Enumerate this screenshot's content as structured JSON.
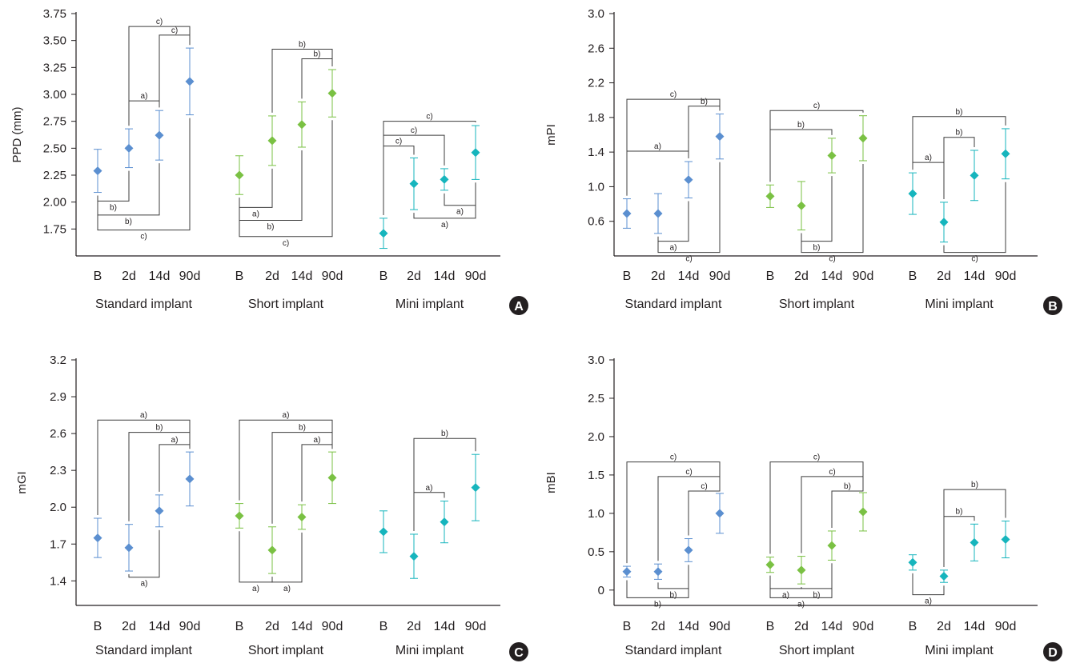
{
  "colors": {
    "standard": "#5b8fd0",
    "short": "#7ac143",
    "mini": "#16b5bd",
    "axis": "#231f20",
    "bracket": "#3c3c3c",
    "badge": "#231f20"
  },
  "chart_data": [
    {
      "type": "scatter",
      "panel": "A",
      "ylabel": "PPD (mm)",
      "yticks": [
        "3.75",
        "3.50",
        "3.25",
        "3.00",
        "2.75",
        "2.50",
        "2.25",
        "2.00",
        "1.75"
      ],
      "ylim": [
        1.5,
        3.75
      ],
      "groups": [
        "Standard implant",
        "Short implant",
        "Mini implant"
      ],
      "timepoints": [
        "B",
        "2d",
        "14d",
        "90d"
      ],
      "series": [
        {
          "name": "Standard implant",
          "values": [
            2.29,
            2.5,
            2.62,
            3.12
          ],
          "errors": [
            0.2,
            0.18,
            0.23,
            0.31
          ]
        },
        {
          "name": "Short implant",
          "values": [
            2.25,
            2.57,
            2.72,
            3.01
          ],
          "errors": [
            0.18,
            0.23,
            0.21,
            0.22
          ]
        },
        {
          "name": "Mini implant",
          "values": [
            1.71,
            2.17,
            2.21,
            2.46
          ],
          "errors": [
            0.14,
            0.24,
            0.1,
            0.25
          ]
        }
      ],
      "brackets": [
        {
          "g": 0,
          "a": 1,
          "b": 2,
          "y": 2.94,
          "dir": "up",
          "label": "a)"
        },
        {
          "g": 0,
          "a": 2,
          "b": 3,
          "y": 3.55,
          "dir": "up",
          "label": "c)"
        },
        {
          "g": 0,
          "a": 1,
          "b": 3,
          "y": 3.63,
          "dir": "up",
          "label": "c)"
        },
        {
          "g": 0,
          "a": 0,
          "b": 1,
          "y": 2.01,
          "dir": "down",
          "label": "b)"
        },
        {
          "g": 0,
          "a": 0,
          "b": 2,
          "y": 1.88,
          "dir": "down",
          "label": "b)"
        },
        {
          "g": 0,
          "a": 0,
          "b": 3,
          "y": 1.74,
          "dir": "down",
          "label": "c)"
        },
        {
          "g": 1,
          "a": 2,
          "b": 3,
          "y": 3.33,
          "dir": "up",
          "label": "b)"
        },
        {
          "g": 1,
          "a": 1,
          "b": 3,
          "y": 3.42,
          "dir": "up",
          "label": "b)"
        },
        {
          "g": 1,
          "a": 0,
          "b": 1,
          "y": 1.95,
          "dir": "down",
          "label": "a)"
        },
        {
          "g": 1,
          "a": 0,
          "b": 2,
          "y": 1.83,
          "dir": "down",
          "label": "b)"
        },
        {
          "g": 1,
          "a": 0,
          "b": 3,
          "y": 1.68,
          "dir": "down",
          "label": "c)"
        },
        {
          "g": 2,
          "a": 0,
          "b": 1,
          "y": 2.52,
          "dir": "up",
          "label": "c)"
        },
        {
          "g": 2,
          "a": 0,
          "b": 2,
          "y": 2.62,
          "dir": "up",
          "label": "c)"
        },
        {
          "g": 2,
          "a": 0,
          "b": 3,
          "y": 2.75,
          "dir": "up",
          "label": "c)"
        },
        {
          "g": 2,
          "a": 2,
          "b": 3,
          "y": 1.97,
          "dir": "down",
          "label": "a)"
        },
        {
          "g": 2,
          "a": 1,
          "b": 3,
          "y": 1.85,
          "dir": "down",
          "label": "a)"
        }
      ],
      "badge": "A"
    },
    {
      "type": "scatter",
      "panel": "B",
      "ylabel": "mPI",
      "yticks": [
        "3.0",
        "2.6",
        "2.2",
        "1.8",
        "1.4",
        "1.0",
        "0.6"
      ],
      "ylim": [
        0.2,
        3.0
      ],
      "groups": [
        "Standard implant",
        "Short implant",
        "Mini implant"
      ],
      "timepoints": [
        "B",
        "2d",
        "14d",
        "90d"
      ],
      "series": [
        {
          "name": "Standard implant",
          "values": [
            0.69,
            0.69,
            1.08,
            1.58
          ],
          "errors": [
            0.17,
            0.23,
            0.21,
            0.26
          ]
        },
        {
          "name": "Short implant",
          "values": [
            0.89,
            0.78,
            1.36,
            1.56
          ],
          "errors": [
            0.13,
            0.28,
            0.2,
            0.26
          ]
        },
        {
          "name": "Mini implant",
          "values": [
            0.92,
            0.59,
            1.13,
            1.38
          ],
          "errors": [
            0.24,
            0.23,
            0.29,
            0.29
          ]
        }
      ],
      "brackets": [
        {
          "g": 0,
          "a": 0,
          "b": 2,
          "y": 1.41,
          "dir": "up",
          "label": "a)"
        },
        {
          "g": 0,
          "a": 2,
          "b": 3,
          "y": 1.93,
          "dir": "up",
          "label": "b)"
        },
        {
          "g": 0,
          "a": 0,
          "b": 3,
          "y": 2.01,
          "dir": "up",
          "label": "c)"
        },
        {
          "g": 0,
          "a": 1,
          "b": 2,
          "y": 0.37,
          "dir": "down",
          "label": "a)"
        },
        {
          "g": 0,
          "a": 1,
          "b": 3,
          "y": 0.24,
          "dir": "down",
          "label": "c)"
        },
        {
          "g": 1,
          "a": 0,
          "b": 2,
          "y": 1.66,
          "dir": "up",
          "label": "b)"
        },
        {
          "g": 1,
          "a": 0,
          "b": 3,
          "y": 1.88,
          "dir": "up",
          "label": "c)"
        },
        {
          "g": 1,
          "a": 1,
          "b": 2,
          "y": 0.37,
          "dir": "down",
          "label": "b)"
        },
        {
          "g": 1,
          "a": 1,
          "b": 3,
          "y": 0.24,
          "dir": "down",
          "label": "c)"
        },
        {
          "g": 2,
          "a": 0,
          "b": 1,
          "y": 1.28,
          "dir": "up",
          "label": "a)"
        },
        {
          "g": 2,
          "a": 1,
          "b": 2,
          "y": 1.57,
          "dir": "up",
          "label": "b)"
        },
        {
          "g": 2,
          "a": 0,
          "b": 3,
          "y": 1.81,
          "dir": "up",
          "label": "b)"
        },
        {
          "g": 2,
          "a": 1,
          "b": 3,
          "y": 0.24,
          "dir": "down",
          "label": "c)"
        }
      ],
      "badge": "B"
    },
    {
      "type": "scatter",
      "panel": "C",
      "ylabel": "mGI",
      "yticks": [
        "3.2",
        "2.9",
        "2.6",
        "2.3",
        "2.0",
        "1.7",
        "1.4"
      ],
      "ylim": [
        1.2,
        3.2
      ],
      "groups": [
        "Standard implant",
        "Short implant",
        "Mini implant"
      ],
      "timepoints": [
        "B",
        "2d",
        "14d",
        "90d"
      ],
      "series": [
        {
          "name": "Standard implant",
          "values": [
            1.75,
            1.67,
            1.97,
            2.23
          ],
          "errors": [
            0.16,
            0.19,
            0.13,
            0.22
          ]
        },
        {
          "name": "Short implant",
          "values": [
            1.93,
            1.65,
            1.92,
            2.24
          ],
          "errors": [
            0.1,
            0.19,
            0.1,
            0.21
          ]
        },
        {
          "name": "Mini implant",
          "values": [
            1.8,
            1.6,
            1.88,
            2.16
          ],
          "errors": [
            0.17,
            0.18,
            0.17,
            0.27
          ]
        }
      ],
      "brackets": [
        {
          "g": 0,
          "a": 2,
          "b": 3,
          "y": 2.51,
          "dir": "up",
          "label": "a)"
        },
        {
          "g": 0,
          "a": 1,
          "b": 3,
          "y": 2.61,
          "dir": "up",
          "label": "b)"
        },
        {
          "g": 0,
          "a": 0,
          "b": 3,
          "y": 2.71,
          "dir": "up",
          "label": "a)"
        },
        {
          "g": 0,
          "a": 1,
          "b": 2,
          "y": 1.43,
          "dir": "down",
          "label": "a)"
        },
        {
          "g": 1,
          "a": 2,
          "b": 3,
          "y": 2.51,
          "dir": "up",
          "label": "a)"
        },
        {
          "g": 1,
          "a": 1,
          "b": 3,
          "y": 2.61,
          "dir": "up",
          "label": "b)"
        },
        {
          "g": 1,
          "a": 0,
          "b": 3,
          "y": 2.71,
          "dir": "up",
          "label": "a)"
        },
        {
          "g": 1,
          "a": 0,
          "b": 1,
          "y": 1.39,
          "dir": "down",
          "label": "a)"
        },
        {
          "g": 1,
          "a": 1,
          "b": 2,
          "y": 1.39,
          "dir": "down",
          "label": "a)"
        },
        {
          "g": 2,
          "a": 1,
          "b": 2,
          "y": 2.12,
          "dir": "up",
          "label": "a)"
        },
        {
          "g": 2,
          "a": 1,
          "b": 3,
          "y": 2.56,
          "dir": "up",
          "label": "b)"
        }
      ],
      "badge": "C"
    },
    {
      "type": "scatter",
      "panel": "D",
      "ylabel": "mBI",
      "yticks": [
        "3.0",
        "2.5",
        "2.0",
        "1.5",
        "1.0",
        "0.5",
        "0"
      ],
      "ylim": [
        -0.2,
        3.0
      ],
      "groups": [
        "Standard implant",
        "Short implant",
        "Mini implant"
      ],
      "timepoints": [
        "B",
        "2d",
        "14d",
        "90d"
      ],
      "series": [
        {
          "name": "Standard implant",
          "values": [
            0.24,
            0.24,
            0.52,
            1.0
          ],
          "errors": [
            0.07,
            0.1,
            0.15,
            0.26
          ]
        },
        {
          "name": "Short implant",
          "values": [
            0.33,
            0.26,
            0.58,
            1.02
          ],
          "errors": [
            0.1,
            0.18,
            0.19,
            0.25
          ]
        },
        {
          "name": "Mini implant",
          "values": [
            0.36,
            0.18,
            0.62,
            0.66
          ],
          "errors": [
            0.1,
            0.08,
            0.24,
            0.24
          ]
        }
      ],
      "brackets": [
        {
          "g": 0,
          "a": 2,
          "b": 3,
          "y": 1.29,
          "dir": "up",
          "label": "c)"
        },
        {
          "g": 0,
          "a": 1,
          "b": 3,
          "y": 1.48,
          "dir": "up",
          "label": "c)"
        },
        {
          "g": 0,
          "a": 0,
          "b": 3,
          "y": 1.67,
          "dir": "up",
          "label": "c)"
        },
        {
          "g": 0,
          "a": 1,
          "b": 2,
          "y": 0.02,
          "dir": "down",
          "label": "b)"
        },
        {
          "g": 0,
          "a": 0,
          "b": 2,
          "y": -0.1,
          "dir": "down",
          "label": "b)"
        },
        {
          "g": 1,
          "a": 2,
          "b": 3,
          "y": 1.29,
          "dir": "up",
          "label": "b)"
        },
        {
          "g": 1,
          "a": 1,
          "b": 3,
          "y": 1.48,
          "dir": "up",
          "label": "c)"
        },
        {
          "g": 1,
          "a": 0,
          "b": 3,
          "y": 1.67,
          "dir": "up",
          "label": "c)"
        },
        {
          "g": 1,
          "a": 0,
          "b": 1,
          "y": 0.02,
          "dir": "down",
          "label": "a)"
        },
        {
          "g": 1,
          "a": 1,
          "b": 2,
          "y": 0.02,
          "dir": "down",
          "label": "b)"
        },
        {
          "g": 1,
          "a": 0,
          "b": 2,
          "y": -0.1,
          "dir": "down",
          "label": "a)"
        },
        {
          "g": 2,
          "a": 1,
          "b": 2,
          "y": 0.96,
          "dir": "up",
          "label": "b)"
        },
        {
          "g": 2,
          "a": 1,
          "b": 3,
          "y": 1.31,
          "dir": "up",
          "label": "b)"
        },
        {
          "g": 2,
          "a": 0,
          "b": 1,
          "y": -0.06,
          "dir": "down",
          "label": "a)"
        }
      ],
      "badge": "D"
    }
  ]
}
